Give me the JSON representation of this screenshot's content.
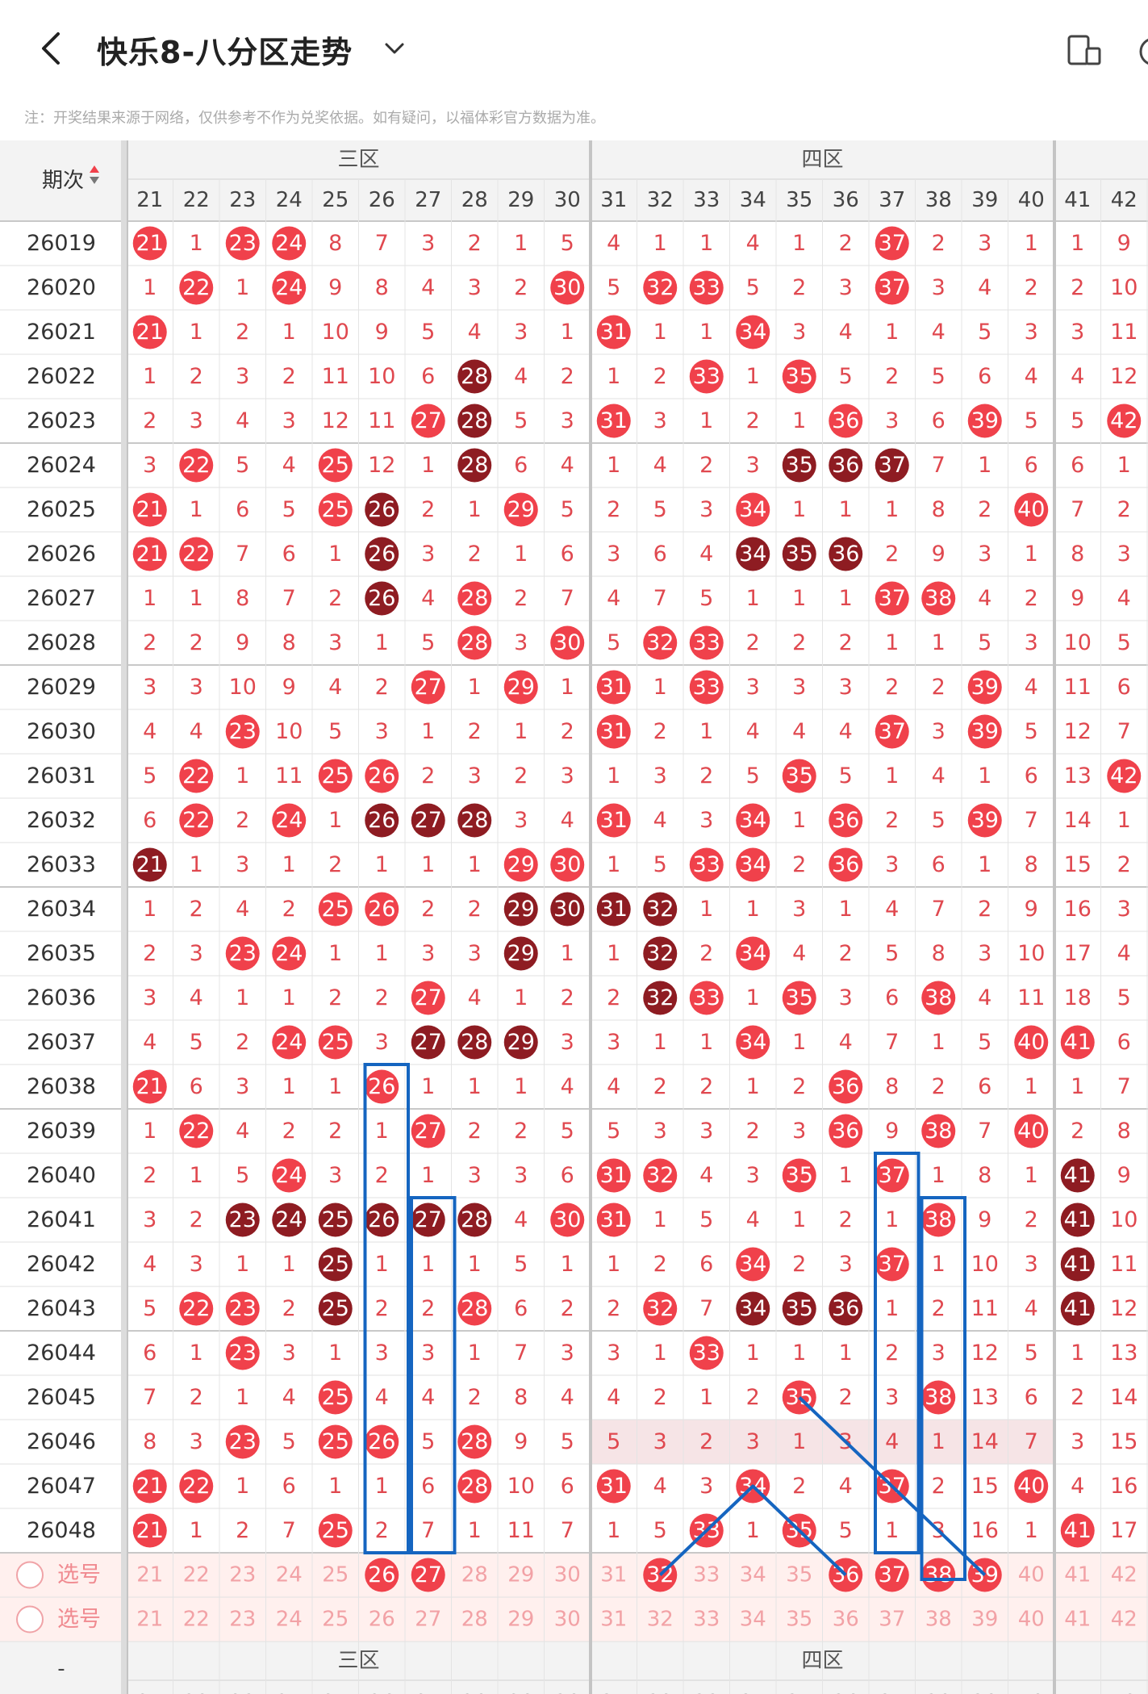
{
  "header": {
    "title": "快乐8-八分区走势",
    "back_icon": "back-arrow-icon",
    "dropdown_icon": "chevron-down-icon",
    "device_icon": "device-toggle-icon",
    "more_icon": "more-icon"
  },
  "note": "注：开奖结果来源于网络，仅供参考不作为兑奖依据。如有疑问，以福体彩官方数据为准。",
  "table": {
    "period_header": "期次",
    "zones": [
      "三区",
      "四区"
    ],
    "columns": [
      21,
      22,
      23,
      24,
      25,
      26,
      27,
      28,
      29,
      30,
      31,
      32,
      33,
      34,
      35,
      36,
      37,
      38,
      39,
      40,
      41,
      42
    ],
    "select_label": "选号",
    "bottom_period_label": "-",
    "rows": [
      {
        "period": "26019",
        "values": [
          21,
          1,
          23,
          24,
          8,
          7,
          3,
          2,
          1,
          5,
          4,
          1,
          1,
          4,
          1,
          2,
          37,
          2,
          3,
          1,
          1,
          9
        ],
        "hits": [
          21,
          23,
          24,
          37
        ]
      },
      {
        "period": "26020",
        "values": [
          1,
          22,
          1,
          24,
          9,
          8,
          4,
          3,
          2,
          30,
          5,
          32,
          33,
          5,
          2,
          3,
          37,
          3,
          4,
          2,
          2,
          10
        ],
        "hits": [
          22,
          24,
          30,
          32,
          33,
          37
        ]
      },
      {
        "period": "26021",
        "values": [
          21,
          1,
          2,
          1,
          10,
          9,
          5,
          4,
          3,
          1,
          31,
          1,
          1,
          34,
          3,
          4,
          1,
          4,
          5,
          3,
          3,
          11
        ],
        "hits": [
          21,
          31,
          34
        ]
      },
      {
        "period": "26022",
        "values": [
          1,
          2,
          3,
          2,
          11,
          10,
          6,
          28,
          4,
          2,
          1,
          2,
          33,
          1,
          35,
          5,
          2,
          5,
          6,
          4,
          4,
          12
        ],
        "hits": [
          28,
          33,
          35
        ],
        "dark": [
          28
        ]
      },
      {
        "period": "26023",
        "values": [
          2,
          3,
          4,
          3,
          12,
          11,
          27,
          28,
          5,
          3,
          31,
          3,
          1,
          2,
          1,
          36,
          3,
          6,
          39,
          5,
          5,
          42
        ],
        "hits": [
          27,
          28,
          31,
          36,
          39,
          42
        ],
        "dark": [
          28
        ]
      },
      {
        "period": "26024",
        "values": [
          3,
          22,
          5,
          4,
          25,
          12,
          1,
          28,
          6,
          4,
          1,
          4,
          2,
          3,
          35,
          36,
          37,
          7,
          1,
          6,
          6,
          1
        ],
        "hits": [
          22,
          25,
          28,
          35,
          36,
          37
        ],
        "dark": [
          28,
          35,
          36,
          37
        ]
      },
      {
        "period": "26025",
        "values": [
          21,
          1,
          6,
          5,
          25,
          26,
          2,
          1,
          29,
          5,
          2,
          5,
          3,
          34,
          1,
          1,
          1,
          8,
          2,
          40,
          7,
          2
        ],
        "hits": [
          21,
          25,
          26,
          29,
          34,
          40
        ],
        "dark": [
          26
        ]
      },
      {
        "period": "26026",
        "values": [
          21,
          22,
          7,
          6,
          1,
          26,
          3,
          2,
          1,
          6,
          3,
          6,
          4,
          34,
          35,
          36,
          2,
          9,
          3,
          1,
          8,
          3
        ],
        "hits": [
          21,
          22,
          26,
          34,
          35,
          36
        ],
        "dark": [
          26,
          34,
          35,
          36
        ]
      },
      {
        "period": "26027",
        "values": [
          1,
          1,
          8,
          7,
          2,
          26,
          4,
          28,
          2,
          7,
          4,
          7,
          5,
          1,
          1,
          1,
          37,
          38,
          4,
          2,
          9,
          4
        ],
        "hits": [
          26,
          28,
          37,
          38
        ],
        "dark": [
          26
        ]
      },
      {
        "period": "26028",
        "values": [
          2,
          2,
          9,
          8,
          3,
          1,
          5,
          28,
          3,
          30,
          5,
          32,
          33,
          2,
          2,
          2,
          1,
          1,
          5,
          3,
          10,
          5
        ],
        "hits": [
          28,
          30,
          32,
          33
        ]
      },
      {
        "period": "26029",
        "values": [
          3,
          3,
          10,
          9,
          4,
          2,
          27,
          1,
          29,
          1,
          31,
          1,
          33,
          3,
          3,
          3,
          2,
          2,
          39,
          4,
          11,
          6
        ],
        "hits": [
          27,
          29,
          31,
          33,
          39
        ]
      },
      {
        "period": "26030",
        "values": [
          4,
          4,
          23,
          10,
          5,
          3,
          1,
          2,
          1,
          2,
          31,
          2,
          1,
          4,
          4,
          4,
          37,
          3,
          39,
          5,
          12,
          7
        ],
        "hits": [
          23,
          31,
          37,
          39
        ]
      },
      {
        "period": "26031",
        "values": [
          5,
          22,
          1,
          11,
          25,
          26,
          2,
          3,
          2,
          3,
          1,
          3,
          2,
          5,
          35,
          5,
          1,
          4,
          1,
          6,
          13,
          42
        ],
        "hits": [
          22,
          25,
          26,
          35,
          42
        ]
      },
      {
        "period": "26032",
        "values": [
          6,
          22,
          2,
          24,
          1,
          26,
          27,
          28,
          3,
          4,
          31,
          4,
          3,
          34,
          1,
          36,
          2,
          5,
          39,
          7,
          14,
          1
        ],
        "hits": [
          22,
          24,
          26,
          27,
          28,
          31,
          34,
          36,
          39
        ],
        "dark": [
          26,
          27,
          28
        ]
      },
      {
        "period": "26033",
        "values": [
          21,
          1,
          3,
          1,
          2,
          1,
          1,
          1,
          29,
          30,
          1,
          5,
          33,
          34,
          2,
          36,
          3,
          6,
          1,
          8,
          15,
          2
        ],
        "hits": [
          21,
          29,
          30,
          33,
          34,
          36
        ],
        "dark": [
          21
        ]
      },
      {
        "period": "26034",
        "values": [
          1,
          2,
          4,
          2,
          25,
          26,
          2,
          2,
          29,
          30,
          31,
          32,
          1,
          1,
          3,
          1,
          4,
          7,
          2,
          9,
          16,
          3
        ],
        "hits": [
          25,
          26,
          29,
          30,
          31,
          32
        ],
        "dark": [
          29,
          30,
          31,
          32
        ]
      },
      {
        "period": "26035",
        "values": [
          2,
          3,
          23,
          24,
          1,
          1,
          3,
          3,
          29,
          1,
          1,
          32,
          2,
          34,
          4,
          2,
          5,
          8,
          3,
          10,
          17,
          4
        ],
        "hits": [
          23,
          24,
          29,
          32,
          34
        ],
        "dark": [
          29,
          32
        ]
      },
      {
        "period": "26036",
        "values": [
          3,
          4,
          1,
          1,
          2,
          2,
          27,
          4,
          1,
          2,
          2,
          32,
          33,
          1,
          35,
          3,
          6,
          38,
          4,
          11,
          18,
          5
        ],
        "hits": [
          27,
          32,
          33,
          35,
          38
        ],
        "dark": [
          32
        ]
      },
      {
        "period": "26037",
        "values": [
          4,
          5,
          2,
          24,
          25,
          3,
          27,
          28,
          29,
          3,
          3,
          1,
          1,
          34,
          1,
          4,
          7,
          1,
          5,
          40,
          41,
          6
        ],
        "hits": [
          24,
          25,
          27,
          28,
          29,
          34,
          40,
          41
        ],
        "dark": [
          27,
          28,
          29
        ]
      },
      {
        "period": "26038",
        "values": [
          21,
          6,
          3,
          1,
          1,
          26,
          1,
          1,
          1,
          4,
          4,
          2,
          2,
          1,
          2,
          36,
          8,
          2,
          6,
          1,
          1,
          7
        ],
        "hits": [
          21,
          26,
          36
        ]
      },
      {
        "period": "26039",
        "values": [
          1,
          22,
          4,
          2,
          2,
          1,
          27,
          2,
          2,
          5,
          5,
          3,
          3,
          2,
          3,
          36,
          9,
          38,
          7,
          40,
          2,
          8
        ],
        "hits": [
          22,
          27,
          36,
          38,
          40
        ]
      },
      {
        "period": "26040",
        "values": [
          2,
          1,
          5,
          24,
          3,
          2,
          1,
          3,
          3,
          6,
          31,
          32,
          4,
          3,
          35,
          1,
          37,
          1,
          8,
          1,
          41,
          9
        ],
        "hits": [
          24,
          31,
          32,
          35,
          37,
          41
        ],
        "dark": [
          41
        ]
      },
      {
        "period": "26041",
        "values": [
          3,
          2,
          23,
          24,
          25,
          26,
          27,
          28,
          4,
          30,
          31,
          1,
          5,
          4,
          1,
          2,
          1,
          38,
          9,
          2,
          41,
          10
        ],
        "hits": [
          23,
          24,
          25,
          26,
          27,
          28,
          30,
          31,
          38,
          41
        ],
        "dark": [
          23,
          24,
          25,
          26,
          27,
          28,
          41
        ]
      },
      {
        "period": "26042",
        "values": [
          4,
          3,
          1,
          1,
          25,
          1,
          1,
          1,
          5,
          1,
          1,
          2,
          6,
          34,
          2,
          3,
          37,
          1,
          10,
          3,
          41,
          11
        ],
        "hits": [
          25,
          34,
          37,
          41
        ],
        "dark": [
          25,
          41
        ]
      },
      {
        "period": "26043",
        "values": [
          5,
          22,
          23,
          2,
          25,
          2,
          2,
          28,
          6,
          2,
          2,
          32,
          7,
          34,
          35,
          36,
          1,
          2,
          11,
          4,
          41,
          12
        ],
        "hits": [
          22,
          23,
          25,
          28,
          32,
          34,
          35,
          36,
          41
        ],
        "dark": [
          25,
          34,
          35,
          36,
          41
        ]
      },
      {
        "period": "26044",
        "values": [
          6,
          1,
          23,
          3,
          1,
          3,
          3,
          1,
          7,
          3,
          3,
          1,
          33,
          1,
          1,
          1,
          2,
          3,
          12,
          5,
          1,
          13
        ],
        "hits": [
          23,
          33
        ]
      },
      {
        "period": "26045",
        "values": [
          7,
          2,
          1,
          4,
          25,
          4,
          4,
          2,
          8,
          4,
          4,
          2,
          1,
          2,
          35,
          2,
          3,
          38,
          13,
          6,
          2,
          14
        ],
        "hits": [
          25,
          35,
          38
        ]
      },
      {
        "period": "26046",
        "values": [
          8,
          3,
          23,
          5,
          25,
          26,
          5,
          28,
          9,
          5,
          5,
          3,
          2,
          3,
          1,
          3,
          4,
          1,
          14,
          7,
          3,
          15
        ],
        "hits": [
          23,
          25,
          26,
          28
        ]
      },
      {
        "period": "26047",
        "values": [
          21,
          22,
          1,
          6,
          1,
          1,
          6,
          28,
          10,
          6,
          31,
          4,
          3,
          34,
          2,
          4,
          37,
          2,
          15,
          40,
          4,
          16
        ],
        "hits": [
          21,
          22,
          28,
          31,
          34,
          37,
          40
        ]
      },
      {
        "period": "26048",
        "values": [
          21,
          1,
          2,
          7,
          25,
          2,
          7,
          1,
          11,
          7,
          1,
          5,
          33,
          1,
          35,
          5,
          1,
          3,
          16,
          1,
          41,
          17
        ],
        "hits": [
          21,
          25,
          33,
          35,
          41
        ]
      }
    ],
    "selected_row1": [
      26,
      27,
      32,
      36,
      37,
      38,
      39
    ],
    "colors": {
      "hit": "#f0414b",
      "repeat": "#8e1c22",
      "miss_number": "#e0484f",
      "highlight_row": "#f6e4e6",
      "header_bg": "#f3f3f3",
      "line": "#1565c0",
      "select_bg": "#fff0ee"
    }
  }
}
